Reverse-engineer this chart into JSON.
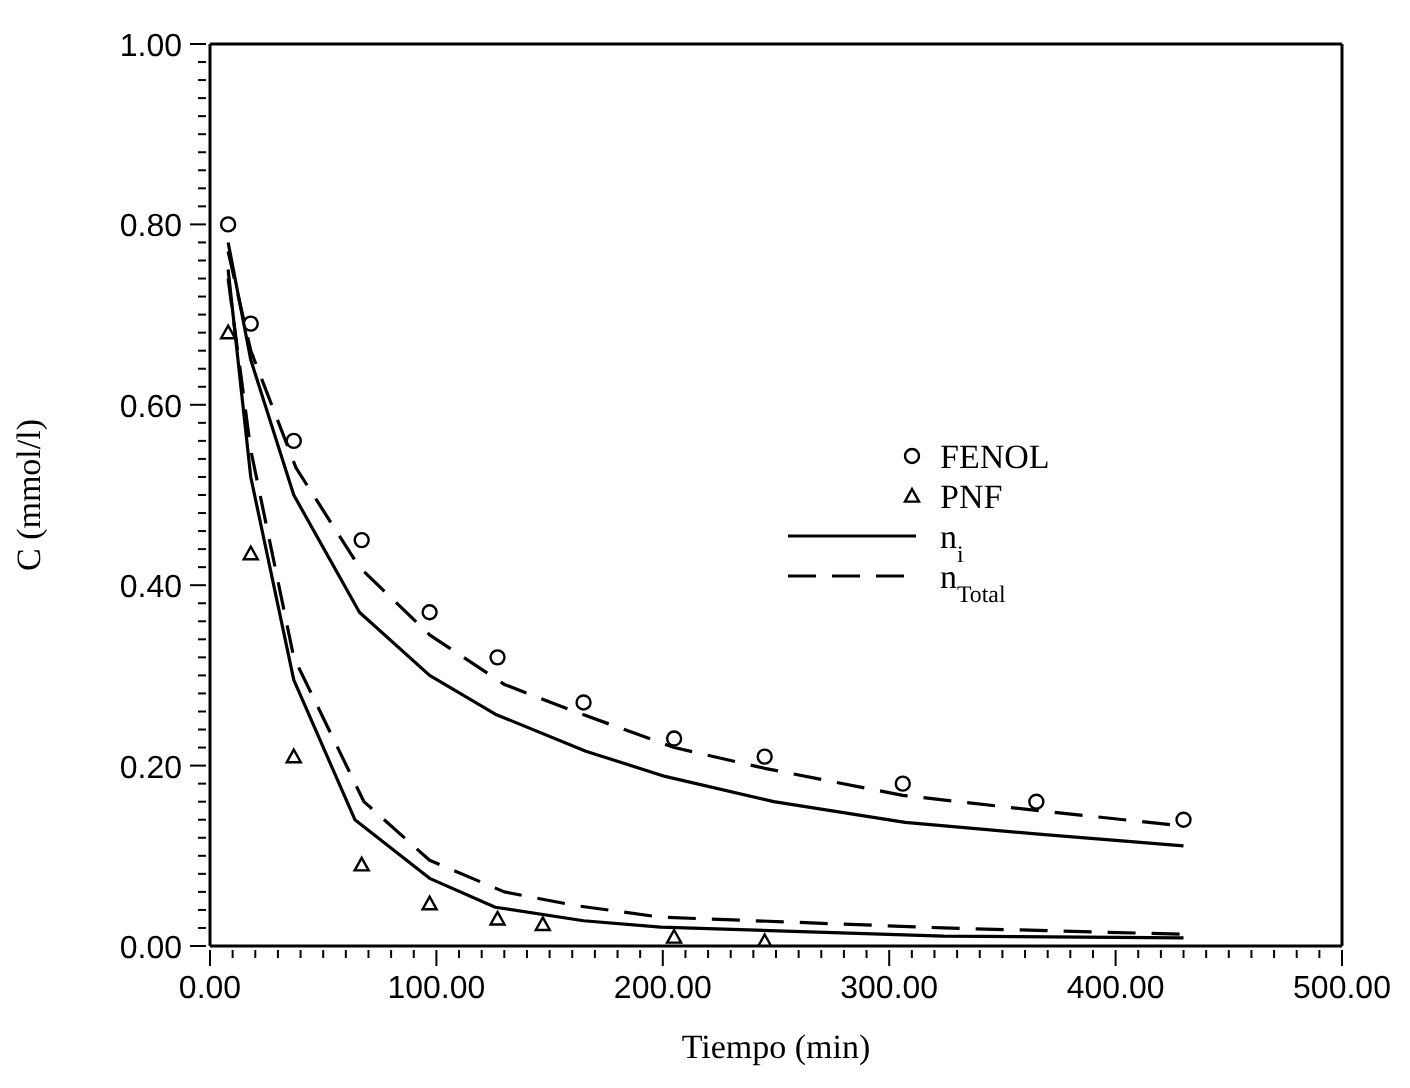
{
  "chart_data": {
    "type": "scatter",
    "xlabel": "Tiempo (min)",
    "ylabel": "C (mmol/l)",
    "xlim": [
      0,
      500
    ],
    "ylim": [
      0,
      1
    ],
    "xticks": [
      {
        "value": 0,
        "label": "0.00"
      },
      {
        "value": 10,
        "label": null
      },
      {
        "value": 20,
        "label": null
      },
      {
        "value": 30,
        "label": null
      },
      {
        "value": 40,
        "label": null
      },
      {
        "value": 50,
        "label": null
      },
      {
        "value": 60,
        "label": null
      },
      {
        "value": 70,
        "label": null
      },
      {
        "value": 80,
        "label": null
      },
      {
        "value": 90,
        "label": null
      },
      {
        "value": 100,
        "label": "100.00"
      },
      {
        "value": 110,
        "label": null
      },
      {
        "value": 120,
        "label": null
      },
      {
        "value": 130,
        "label": null
      },
      {
        "value": 140,
        "label": null
      },
      {
        "value": 150,
        "label": null
      },
      {
        "value": 160,
        "label": null
      },
      {
        "value": 170,
        "label": null
      },
      {
        "value": 180,
        "label": null
      },
      {
        "value": 190,
        "label": null
      },
      {
        "value": 200,
        "label": "200.00"
      },
      {
        "value": 210,
        "label": null
      },
      {
        "value": 220,
        "label": null
      },
      {
        "value": 230,
        "label": null
      },
      {
        "value": 240,
        "label": null
      },
      {
        "value": 250,
        "label": null
      },
      {
        "value": 260,
        "label": null
      },
      {
        "value": 270,
        "label": null
      },
      {
        "value": 280,
        "label": null
      },
      {
        "value": 290,
        "label": null
      },
      {
        "value": 300,
        "label": "300.00"
      },
      {
        "value": 310,
        "label": null
      },
      {
        "value": 320,
        "label": null
      },
      {
        "value": 330,
        "label": null
      },
      {
        "value": 340,
        "label": null
      },
      {
        "value": 350,
        "label": null
      },
      {
        "value": 360,
        "label": null
      },
      {
        "value": 370,
        "label": null
      },
      {
        "value": 380,
        "label": null
      },
      {
        "value": 390,
        "label": null
      },
      {
        "value": 400,
        "label": "400.00"
      },
      {
        "value": 410,
        "label": null
      },
      {
        "value": 420,
        "label": null
      },
      {
        "value": 430,
        "label": null
      },
      {
        "value": 440,
        "label": null
      },
      {
        "value": 450,
        "label": null
      },
      {
        "value": 460,
        "label": null
      },
      {
        "value": 470,
        "label": null
      },
      {
        "value": 480,
        "label": null
      },
      {
        "value": 490,
        "label": null
      },
      {
        "value": 500,
        "label": "500.00"
      }
    ],
    "yticks": [
      {
        "value": 0,
        "label": "0.00"
      },
      {
        "value": 0.02,
        "label": null
      },
      {
        "value": 0.04,
        "label": null
      },
      {
        "value": 0.06,
        "label": null
      },
      {
        "value": 0.08,
        "label": null
      },
      {
        "value": 0.1,
        "label": null
      },
      {
        "value": 0.12,
        "label": null
      },
      {
        "value": 0.14,
        "label": null
      },
      {
        "value": 0.16,
        "label": null
      },
      {
        "value": 0.18,
        "label": null
      },
      {
        "value": 0.2,
        "label": "0.20"
      },
      {
        "value": 0.22,
        "label": null
      },
      {
        "value": 0.24,
        "label": null
      },
      {
        "value": 0.26,
        "label": null
      },
      {
        "value": 0.28,
        "label": null
      },
      {
        "value": 0.3,
        "label": null
      },
      {
        "value": 0.32,
        "label": null
      },
      {
        "value": 0.34,
        "label": null
      },
      {
        "value": 0.36,
        "label": null
      },
      {
        "value": 0.38,
        "label": null
      },
      {
        "value": 0.4,
        "label": "0.40"
      },
      {
        "value": 0.42,
        "label": null
      },
      {
        "value": 0.44,
        "label": null
      },
      {
        "value": 0.46,
        "label": null
      },
      {
        "value": 0.48,
        "label": null
      },
      {
        "value": 0.5,
        "label": null
      },
      {
        "value": 0.52,
        "label": null
      },
      {
        "value": 0.54,
        "label": null
      },
      {
        "value": 0.56,
        "label": null
      },
      {
        "value": 0.58,
        "label": null
      },
      {
        "value": 0.6,
        "label": "0.60"
      },
      {
        "value": 0.62,
        "label": null
      },
      {
        "value": 0.64,
        "label": null
      },
      {
        "value": 0.66,
        "label": null
      },
      {
        "value": 0.68,
        "label": null
      },
      {
        "value": 0.7,
        "label": null
      },
      {
        "value": 0.72,
        "label": null
      },
      {
        "value": 0.74,
        "label": null
      },
      {
        "value": 0.76,
        "label": null
      },
      {
        "value": 0.78,
        "label": null
      },
      {
        "value": 0.8,
        "label": "0.80"
      },
      {
        "value": 0.82,
        "label": null
      },
      {
        "value": 0.84,
        "label": null
      },
      {
        "value": 0.86,
        "label": null
      },
      {
        "value": 0.88,
        "label": null
      },
      {
        "value": 0.9,
        "label": null
      },
      {
        "value": 0.92,
        "label": null
      },
      {
        "value": 0.94,
        "label": null
      },
      {
        "value": 0.96,
        "label": null
      },
      {
        "value": 0.98,
        "label": null
      },
      {
        "value": 1,
        "label": "1.00"
      }
    ],
    "legend": "right",
    "series": [
      {
        "name": "FENOL",
        "marker": "circle",
        "color": "#000000",
        "x": [
          8,
          18,
          37,
          67,
          97,
          127,
          165,
          205,
          245,
          306,
          365,
          430
        ],
        "values": [
          0.8,
          0.69,
          0.56,
          0.45,
          0.37,
          0.32,
          0.27,
          0.23,
          0.21,
          0.18,
          0.16,
          0.14
        ]
      },
      {
        "name": "PNF",
        "marker": "triangle",
        "color": "#000000",
        "x": [
          8,
          18,
          37,
          67,
          97,
          127,
          147,
          205,
          245
        ],
        "values": [
          0.68,
          0.435,
          0.21,
          0.09,
          0.047,
          0.03,
          0.024,
          0.01,
          0.005
        ]
      },
      {
        "name": "n$_{i}$",
        "type": "line",
        "marker": "none",
        "line_style": "solid",
        "color": "#000000",
        "x": [
          8,
          18,
          37,
          66,
          97,
          126,
          166,
          201,
          249,
          307,
          366,
          430
        ],
        "values": [
          0.78,
          0.65,
          0.5,
          0.37,
          0.3,
          0.257,
          0.216,
          0.188,
          0.16,
          0.137,
          0.124,
          0.111
        ]
      },
      {
        "type": "line",
        "marker": "none",
        "line_style": "solid",
        "color": "#000000",
        "x": [
          8,
          18,
          37,
          64,
          97,
          126,
          165,
          199,
          324,
          430
        ],
        "values": [
          0.75,
          0.52,
          0.295,
          0.14,
          0.075,
          0.043,
          0.028,
          0.021,
          0.011,
          0.009
        ]
      },
      {
        "name": "n$_{Total}$",
        "type": "line",
        "marker": "none",
        "line_style": "dashed",
        "color": "#000000",
        "x": [
          8,
          18,
          38,
          66,
          97,
          130,
          161,
          205,
          245,
          306,
          366,
          430
        ],
        "values": [
          0.77,
          0.66,
          0.53,
          0.42,
          0.345,
          0.29,
          0.26,
          0.22,
          0.197,
          0.167,
          0.15,
          0.133
        ]
      },
      {
        "type": "line",
        "marker": "none",
        "line_style": "dashed",
        "color": "#000000",
        "x": [
          8,
          18,
          37,
          68,
          97,
          130,
          161,
          199,
          324,
          430
        ],
        "values": [
          0.74,
          0.55,
          0.32,
          0.16,
          0.095,
          0.06,
          0.045,
          0.032,
          0.02,
          0.013
        ]
      }
    ]
  }
}
